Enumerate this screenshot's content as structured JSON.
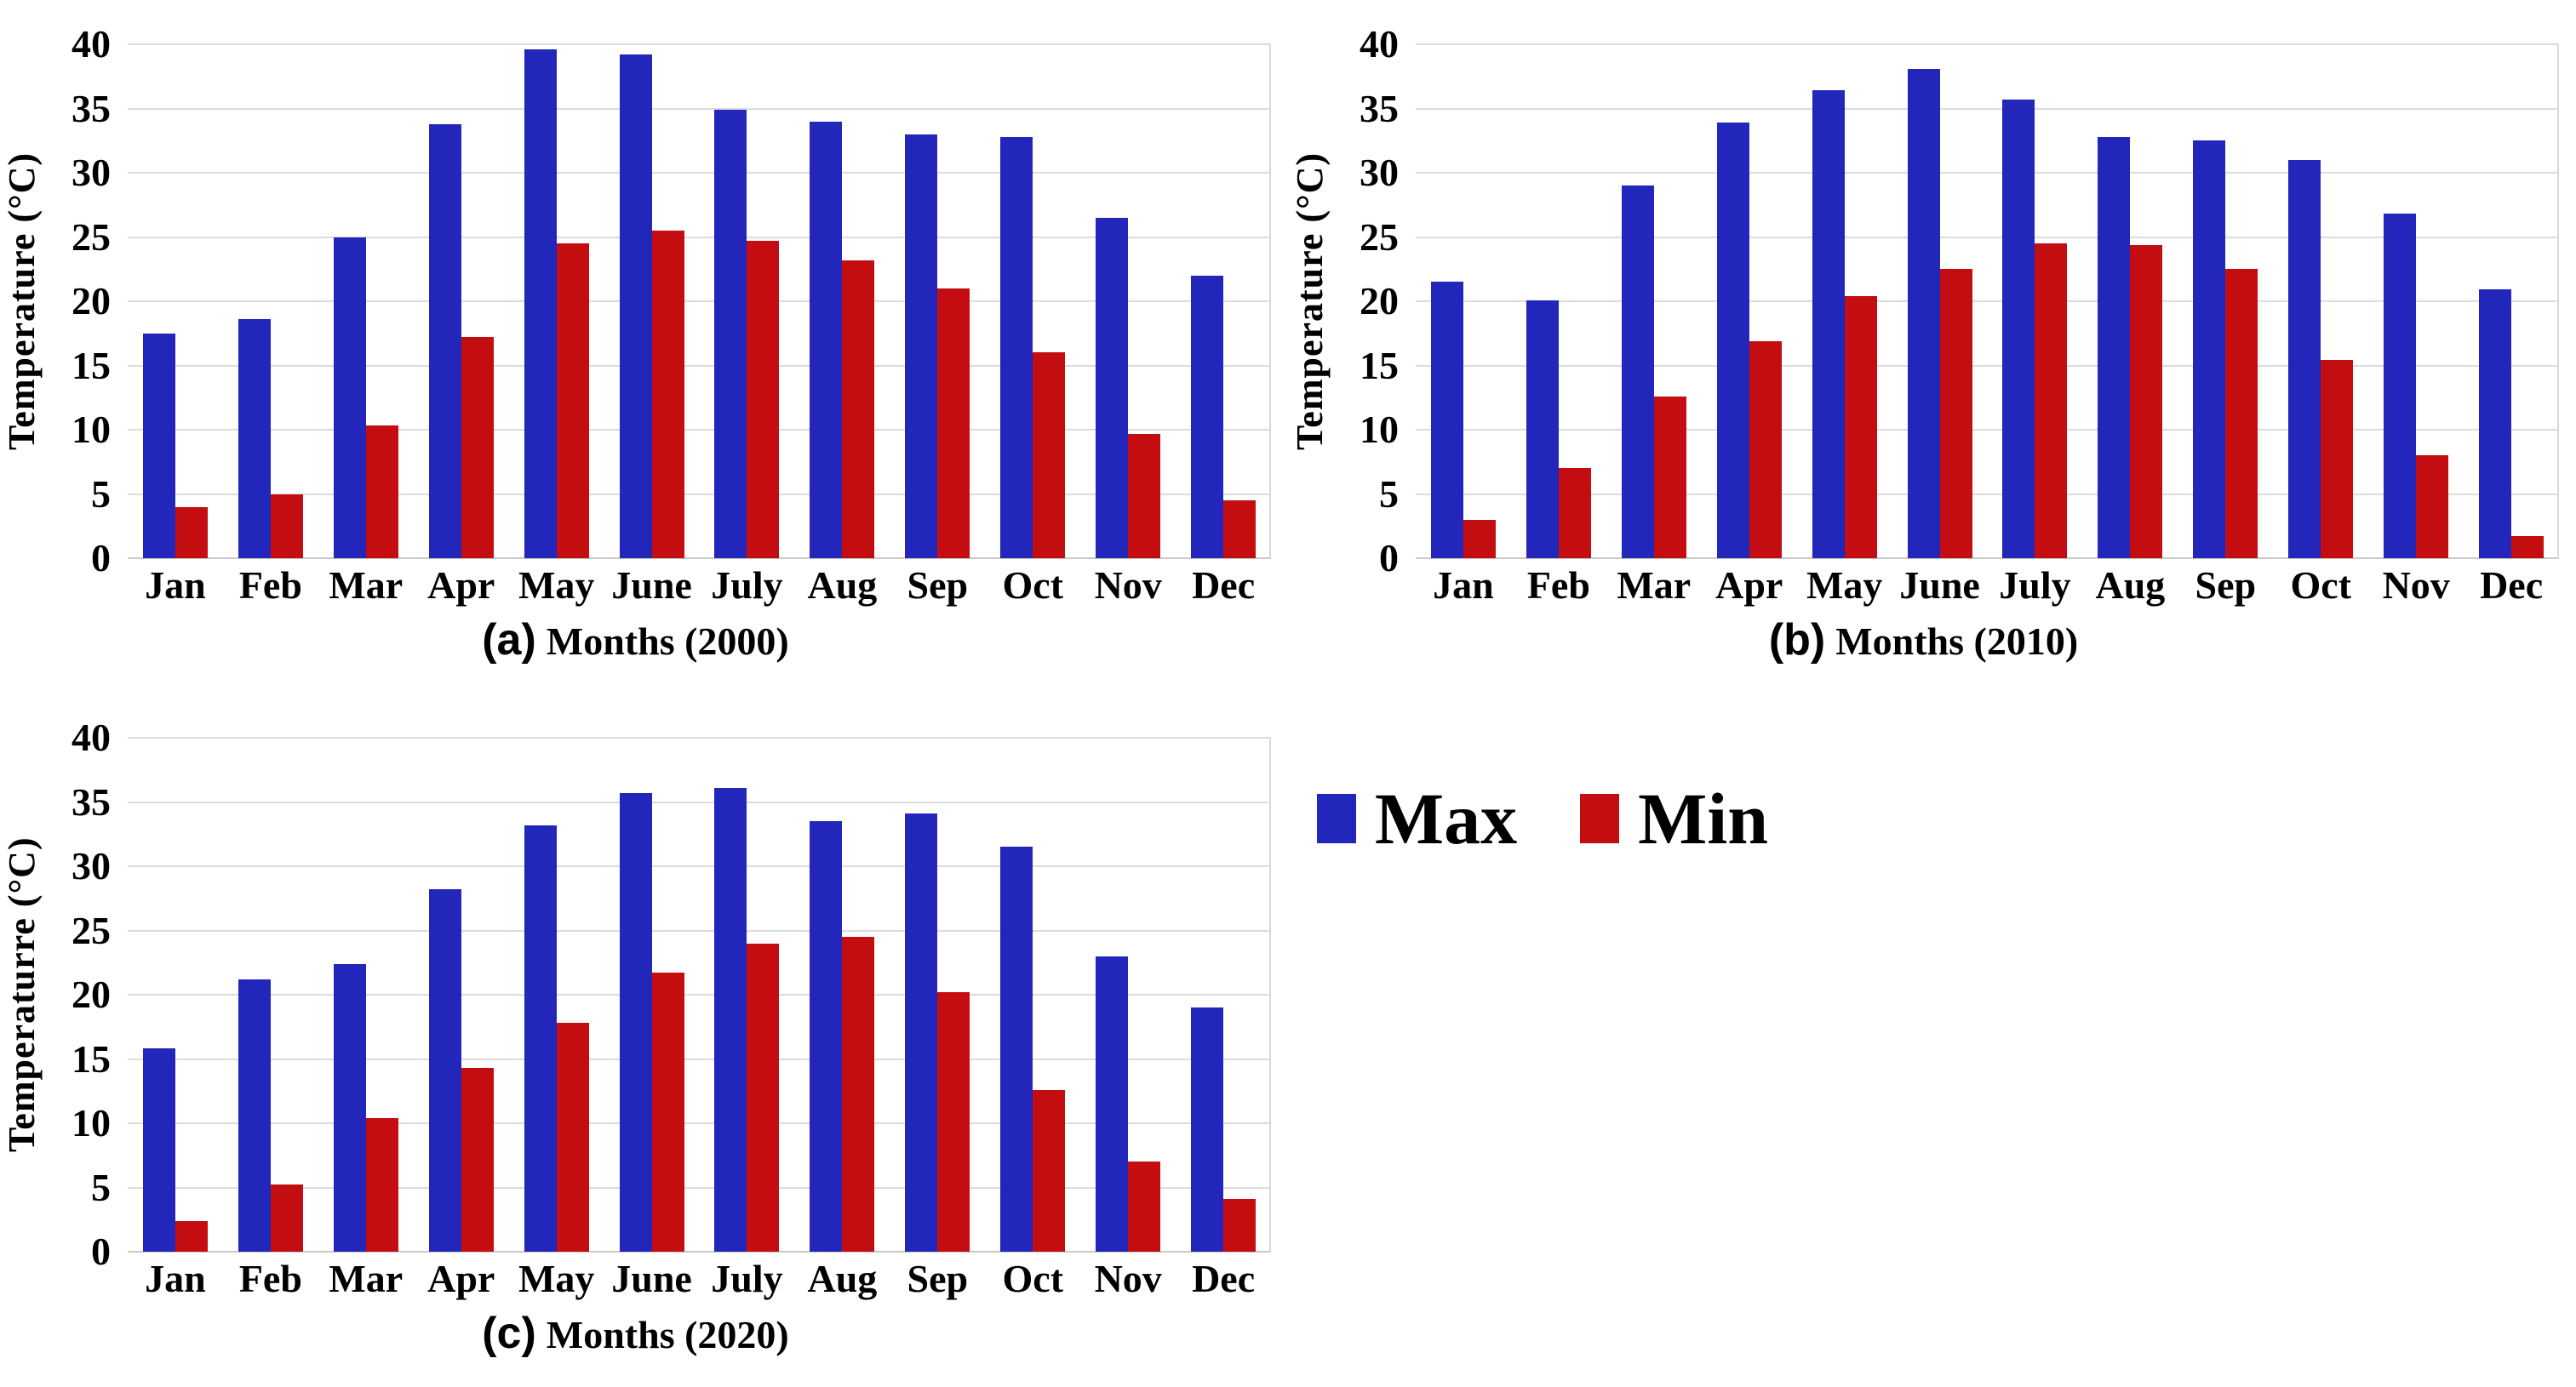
{
  "figure": {
    "background": "#ffffff"
  },
  "colors": {
    "max_bar": "#2226bb",
    "min_bar": "#c40d11",
    "gridline": "#dcdcdc",
    "text": "#000000"
  },
  "chart_data": [
    {
      "type": "bar",
      "caption_prefix": "(a)",
      "xlabel": "Months (2000)",
      "ylabel": "Temperature (°C)",
      "categories": [
        "Jan",
        "Feb",
        "Mar",
        "Apr",
        "May",
        "June",
        "July",
        "Aug",
        "Sep",
        "Oct",
        "Nov",
        "Dec"
      ],
      "series": [
        {
          "name": "Max",
          "color": "#2226bb",
          "values": [
            17.5,
            18.6,
            25.0,
            33.8,
            39.6,
            39.2,
            34.9,
            34.0,
            33.0,
            32.8,
            26.5,
            22.0
          ]
        },
        {
          "name": "Min",
          "color": "#c40d11",
          "values": [
            4.0,
            5.0,
            10.3,
            17.2,
            24.5,
            25.5,
            24.7,
            23.2,
            21.0,
            16.0,
            9.7,
            4.5
          ]
        }
      ],
      "ylim": [
        0,
        40
      ],
      "yticks": [
        0,
        5,
        10,
        15,
        20,
        25,
        30,
        35,
        40
      ],
      "grid": true
    },
    {
      "type": "bar",
      "caption_prefix": "(b)",
      "xlabel": "Months (2010)",
      "ylabel": "Temperature (°C)",
      "categories": [
        "Jan",
        "Feb",
        "Mar",
        "Apr",
        "May",
        "June",
        "July",
        "Aug",
        "Sep",
        "Oct",
        "Nov",
        "Dec"
      ],
      "series": [
        {
          "name": "Max",
          "color": "#2226bb",
          "values": [
            21.5,
            20.1,
            29.0,
            33.9,
            36.4,
            38.1,
            35.7,
            32.8,
            32.5,
            31.0,
            26.8,
            20.9
          ]
        },
        {
          "name": "Min",
          "color": "#c40d11",
          "values": [
            3.0,
            7.0,
            12.6,
            16.9,
            20.4,
            22.5,
            24.5,
            24.4,
            22.5,
            15.4,
            8.0,
            1.7
          ]
        }
      ],
      "ylim": [
        0,
        40
      ],
      "yticks": [
        0,
        5,
        10,
        15,
        20,
        25,
        30,
        35,
        40
      ],
      "grid": true
    },
    {
      "type": "bar",
      "caption_prefix": "(c)",
      "xlabel": "Months (2020)",
      "ylabel": "Temperaturre (°C)",
      "categories": [
        "Jan",
        "Feb",
        "Mar",
        "Apr",
        "May",
        "June",
        "July",
        "Aug",
        "Sep",
        "Oct",
        "Nov",
        "Dec"
      ],
      "series": [
        {
          "name": "Max",
          "color": "#2226bb",
          "values": [
            15.8,
            21.2,
            22.4,
            28.2,
            33.2,
            35.7,
            36.1,
            33.5,
            34.1,
            31.5,
            23.0,
            19.0
          ]
        },
        {
          "name": "Min",
          "color": "#c40d11",
          "values": [
            2.4,
            5.2,
            10.4,
            14.3,
            17.8,
            21.7,
            24.0,
            24.5,
            20.2,
            12.6,
            7.0,
            4.1
          ]
        }
      ],
      "ylim": [
        0,
        40
      ],
      "yticks": [
        0,
        5,
        10,
        15,
        20,
        25,
        30,
        35,
        40
      ],
      "grid": true
    }
  ],
  "legend": {
    "position": "right-middle"
  }
}
